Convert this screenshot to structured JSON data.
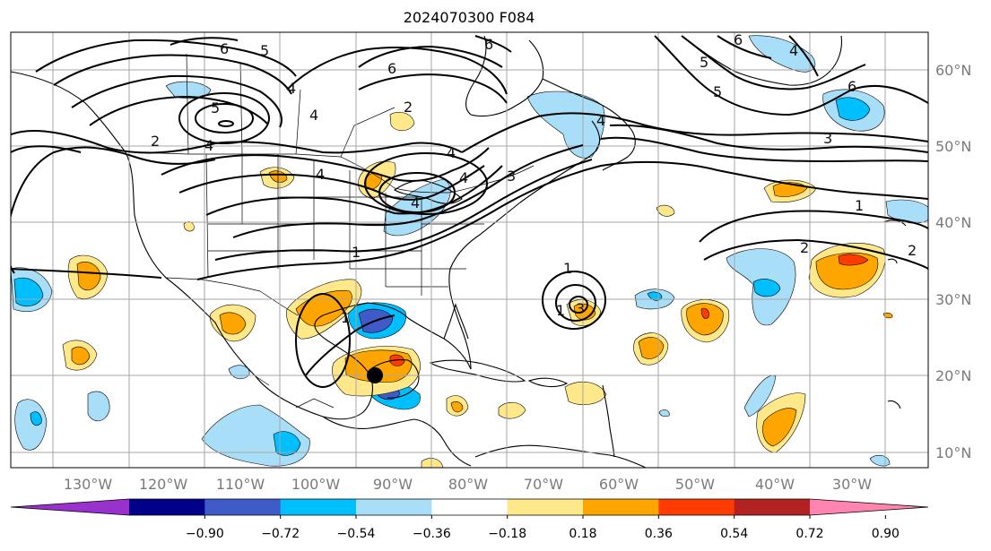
{
  "title": "2024070300 F084",
  "longitude_labels": [
    "130°W",
    "120°W",
    "110°W",
    "100°W",
    "90°W",
    "80°W",
    "70°W",
    "60°W",
    "50°W",
    "40°W",
    "30°W"
  ],
  "latitude_labels": [
    "60°N",
    "50°N",
    "40°N",
    "30°N",
    "20°N",
    "10°N"
  ],
  "colorbar": {
    "tick_labels": [
      "−0.90",
      "−0.72",
      "−0.54",
      "−0.36",
      "−0.18",
      "0.18",
      "0.36",
      "0.54",
      "0.72",
      "0.90"
    ],
    "colors": [
      "#9932cc",
      "#00008b",
      "#3e5bc7",
      "#00bfff",
      "#a8def7",
      "#ffffff",
      "#ffe88a",
      "#ffa500",
      "#ff3c00",
      "#b22222",
      "#ff85b0"
    ]
  },
  "contour_labels": [
    "6",
    "5",
    "6",
    "6",
    "5",
    "6",
    "5",
    "4",
    "2",
    "2",
    "4",
    "5",
    "4",
    "4",
    "4",
    "4",
    "4",
    "4",
    "4",
    "1",
    "3",
    "3",
    "1",
    "1",
    "2",
    "2",
    "1",
    "3",
    "6",
    "1"
  ],
  "shading_colors": {
    "light_blue": "#a8def7",
    "blue": "#00bfff",
    "royal_blue": "#3e5bc7",
    "yellow": "#ffe88a",
    "orange": "#ffa500",
    "red": "#ff3c00"
  },
  "marker": "storm-center-marker"
}
